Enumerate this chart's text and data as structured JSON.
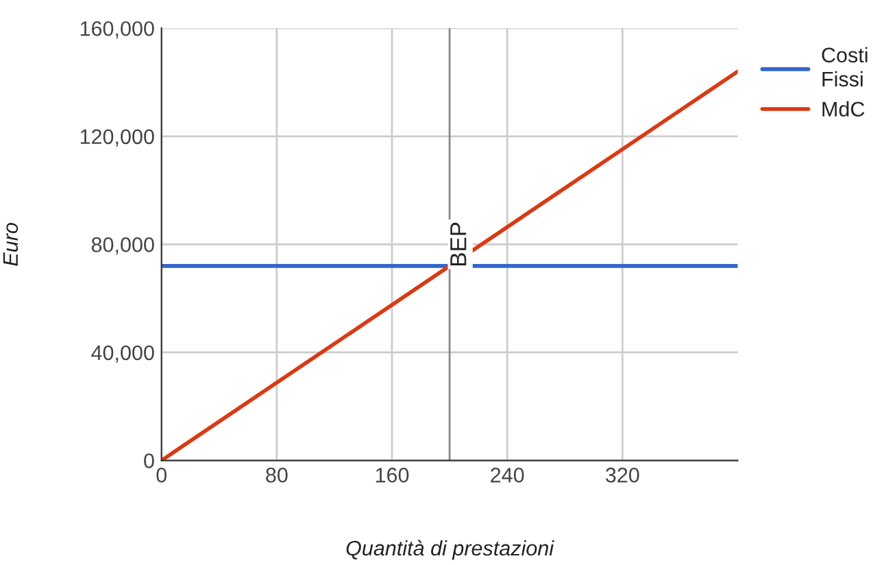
{
  "chart_data": {
    "type": "line",
    "xlabel": "Quantità di prestazioni",
    "ylabel": "Euro",
    "series": [
      {
        "name": "Costi Fissi",
        "color": "#3366cc",
        "values": [
          72000,
          72000
        ]
      },
      {
        "name": "MdC",
        "color": "#dc3912",
        "values": [
          0,
          144000
        ]
      }
    ],
    "x": [
      0,
      400
    ],
    "xlim": [
      0,
      400
    ],
    "xticks": [
      0,
      80,
      160,
      240,
      320
    ],
    "ylim": [
      0,
      160000
    ],
    "yticks": [
      {
        "value": 0,
        "label": "0"
      },
      {
        "value": 40000,
        "label": "40,000"
      },
      {
        "value": 80000,
        "label": "80,000"
      },
      {
        "value": 120000,
        "label": "120,000"
      },
      {
        "value": 160000,
        "label": "160,000"
      }
    ],
    "ref_lines": [
      {
        "axis": "x",
        "value": 200,
        "label": "BEP",
        "color": "#888888"
      }
    ],
    "grid": true,
    "legend": "right",
    "marker": "none",
    "line_style": "solid"
  }
}
